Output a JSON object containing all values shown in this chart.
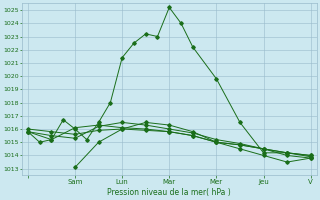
{
  "title": "",
  "xlabel": "Pression niveau de la mer( hPa )",
  "bg_color": "#cce8f0",
  "plot_bg_color": "#cce8f0",
  "grid_color": "#99bbcc",
  "line_color": "#1a6e1a",
  "ylim": [
    1012.5,
    1025.5
  ],
  "yticks": [
    1013,
    1014,
    1015,
    1016,
    1017,
    1018,
    1019,
    1020,
    1021,
    1022,
    1023,
    1024,
    1025
  ],
  "day_labels": [
    "",
    "Sam",
    "Lun",
    "Mar",
    "Mer",
    "Jeu",
    "V"
  ],
  "day_positions": [
    0,
    4,
    8,
    12,
    16,
    20,
    24
  ],
  "lines": [
    {
      "x": [
        0,
        1,
        2,
        3,
        4,
        5,
        6,
        7,
        8,
        9,
        10,
        11,
        12,
        13,
        14,
        16,
        18,
        20,
        22,
        24
      ],
      "y": [
        1015.8,
        1015.0,
        1015.2,
        1016.7,
        1016.0,
        1015.2,
        1016.5,
        1018.0,
        1021.4,
        1022.5,
        1023.2,
        1023.0,
        1025.2,
        1024.0,
        1022.2,
        1019.8,
        1016.5,
        1014.2,
        1014.2,
        1014.0
      ]
    },
    {
      "x": [
        0,
        2,
        4,
        6,
        8,
        10,
        12,
        14,
        16,
        18,
        20,
        22,
        24
      ],
      "y": [
        1015.8,
        1015.2,
        1016.1,
        1016.3,
        1016.1,
        1016.0,
        1015.8,
        1015.5,
        1015.0,
        1014.8,
        1014.5,
        1014.2,
        1014.0
      ]
    },
    {
      "x": [
        0,
        2,
        4,
        6,
        8,
        10,
        12,
        14,
        16,
        18,
        20,
        22,
        24
      ],
      "y": [
        1016.0,
        1015.8,
        1015.6,
        1015.9,
        1016.0,
        1015.9,
        1015.8,
        1015.5,
        1015.0,
        1014.8,
        1014.5,
        1014.2,
        1013.9
      ]
    },
    {
      "x": [
        0,
        2,
        4,
        6,
        8,
        10,
        12,
        14,
        16,
        18,
        20,
        22,
        24
      ],
      "y": [
        1015.8,
        1015.5,
        1015.3,
        1016.2,
        1016.5,
        1016.3,
        1016.0,
        1015.7,
        1015.2,
        1014.9,
        1014.5,
        1014.0,
        1013.8
      ]
    },
    {
      "x": [
        4,
        6,
        8,
        10,
        12,
        14,
        16,
        18,
        20,
        22,
        24
      ],
      "y": [
        1013.1,
        1015.0,
        1016.0,
        1016.5,
        1016.3,
        1015.8,
        1015.0,
        1014.5,
        1014.0,
        1013.5,
        1013.8
      ]
    }
  ]
}
